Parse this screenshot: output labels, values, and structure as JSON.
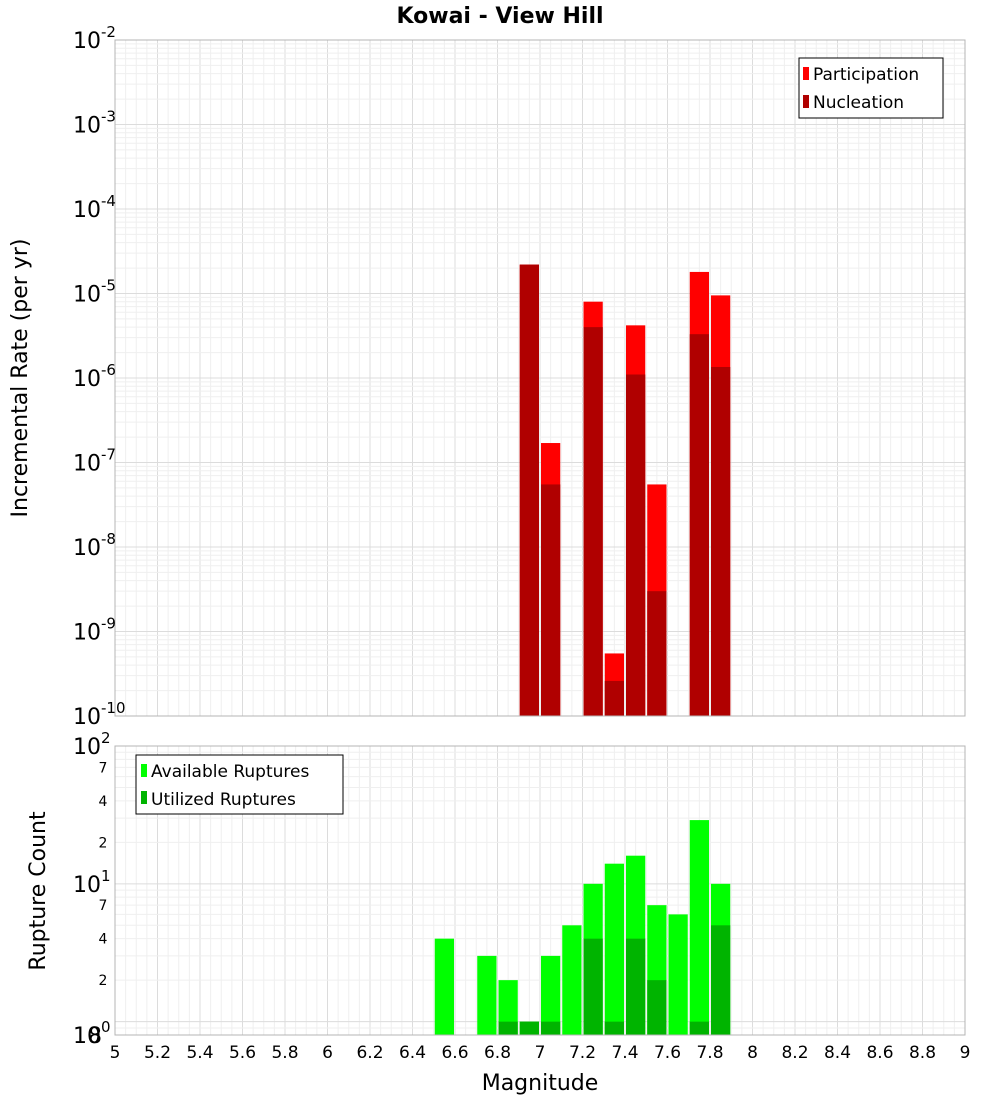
{
  "chart_data": [
    {
      "type": "bar",
      "title": "Kowai - View Hill",
      "xlabel": "Magnitude",
      "ylabel": "Incremental Rate (per yr)",
      "yscale": "log",
      "ylim": [
        1e-10,
        0.01
      ],
      "y_tick_labels": [
        {
          "base": "10",
          "exp": "-2"
        },
        {
          "base": "10",
          "exp": "-3"
        },
        {
          "base": "10",
          "exp": "-4"
        },
        {
          "base": "10",
          "exp": "-5"
        },
        {
          "base": "10",
          "exp": "-6"
        },
        {
          "base": "10",
          "exp": "-7"
        },
        {
          "base": "10",
          "exp": "-8"
        },
        {
          "base": "10",
          "exp": "-9"
        },
        {
          "base": "10",
          "exp": "-10"
        }
      ],
      "bar_width": 0.1,
      "series": [
        {
          "name": "Participation",
          "color": "#ff0000",
          "x": [
            6.95,
            7.05,
            7.25,
            7.35,
            7.45,
            7.55,
            7.75,
            7.85
          ],
          "values": [
            2.2e-05,
            1.7e-07,
            8e-06,
            5.5e-10,
            4.2e-06,
            5.5e-08,
            1.8e-05,
            9.5e-06
          ]
        },
        {
          "name": "Nucleation",
          "color": "#b00000",
          "x": [
            6.95,
            7.05,
            7.25,
            7.35,
            7.45,
            7.55,
            7.75,
            7.85
          ],
          "values": [
            2.2e-05,
            5.5e-08,
            4e-06,
            2.6e-10,
            1.1e-06,
            3e-09,
            3.3e-06,
            1.35e-06
          ]
        }
      ]
    },
    {
      "type": "bar",
      "title": "",
      "xlabel": "Magnitude",
      "ylabel": "Rupture Count",
      "yscale": "log",
      "ylim": [
        0.8,
        100
      ],
      "x_ticks": [
        "5",
        "5.2",
        "5.4",
        "5.6",
        "5.8",
        "6",
        "6.2",
        "6.4",
        "6.6",
        "6.8",
        "7",
        "7.2",
        "7.4",
        "7.6",
        "7.8",
        "8",
        "8.2",
        "8.4",
        "8.6",
        "8.8",
        "9"
      ],
      "xlim": [
        5,
        9
      ],
      "y_tick_labels": [
        {
          "base": "10",
          "exp": "2"
        },
        {
          "base": "10",
          "exp": "1"
        },
        {
          "base": "10",
          "exp": "0"
        }
      ],
      "y_minor_labels": [
        "7",
        "4",
        "2",
        "7",
        "4",
        "2",
        "8"
      ],
      "bar_width": 0.1,
      "series": [
        {
          "name": "Available Ruptures",
          "color": "#00ff00",
          "x": [
            6.55,
            6.75,
            6.85,
            6.95,
            7.05,
            7.15,
            7.25,
            7.35,
            7.45,
            7.55,
            7.65,
            7.75,
            7.85
          ],
          "values": [
            4,
            3,
            2,
            1,
            3,
            5,
            10,
            14,
            16,
            7,
            6,
            29,
            10
          ]
        },
        {
          "name": "Utilized Ruptures",
          "color": "#00b400",
          "x": [
            6.85,
            6.95,
            7.05,
            7.25,
            7.35,
            7.45,
            7.55,
            7.75,
            7.85
          ],
          "values": [
            1,
            1,
            1,
            4,
            1,
            4,
            2,
            1,
            5
          ]
        }
      ]
    }
  ]
}
